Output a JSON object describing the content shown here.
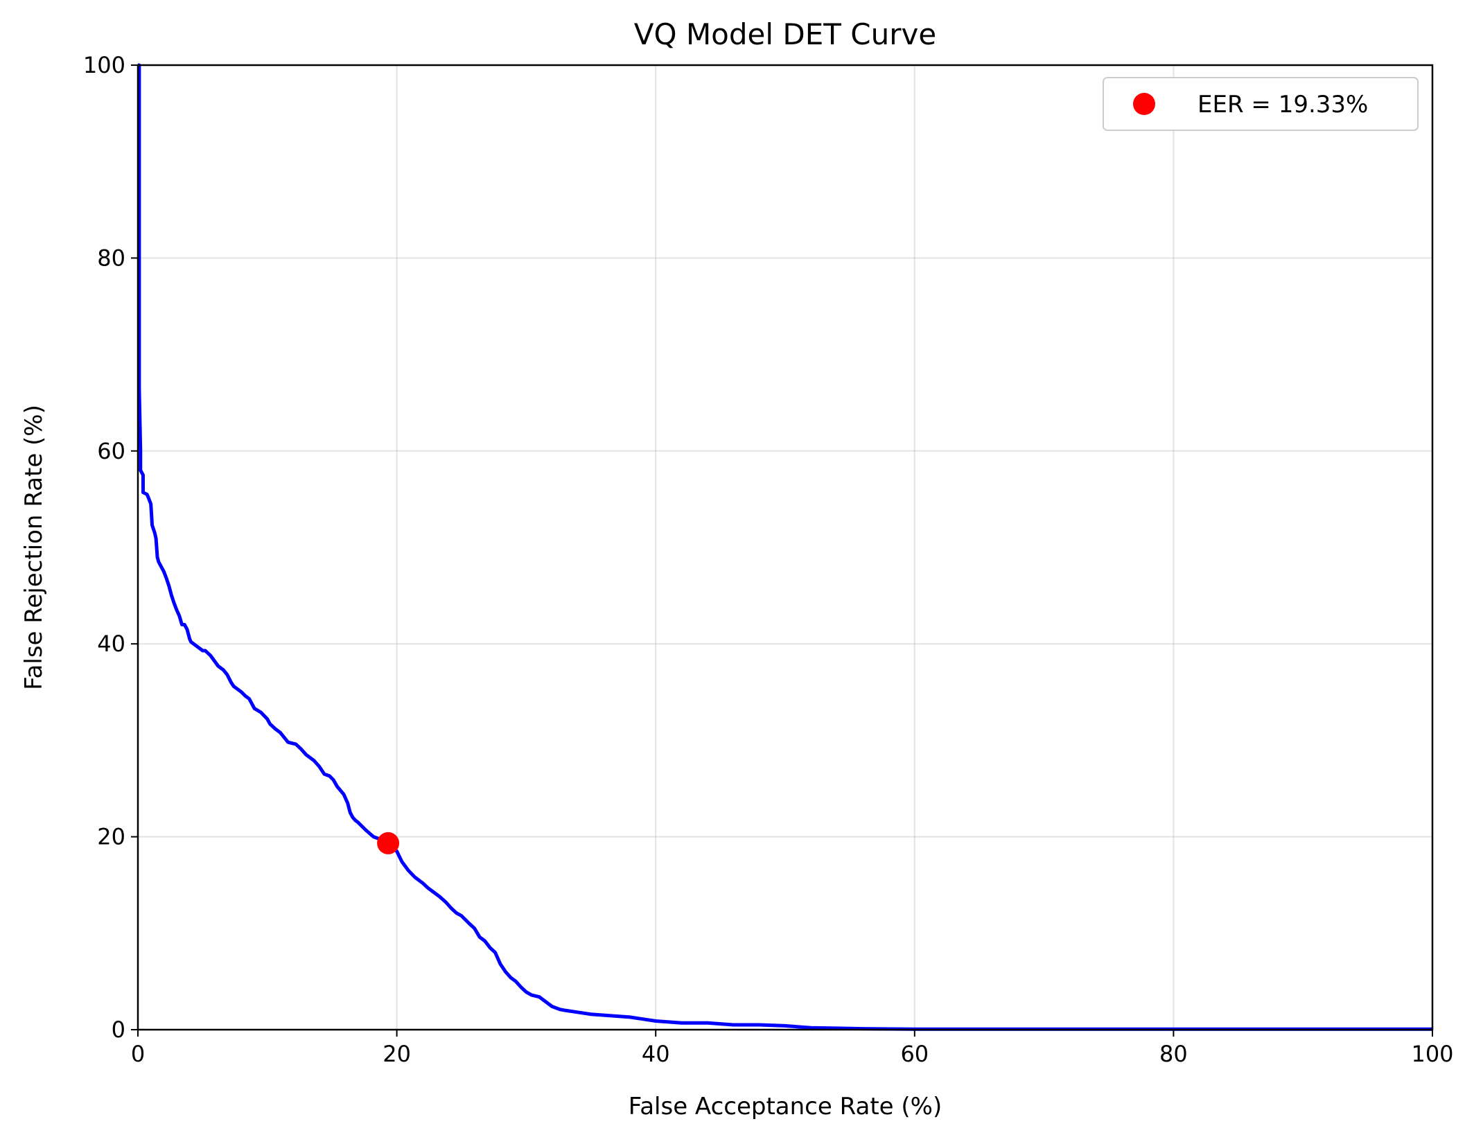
{
  "chart_data": {
    "type": "line",
    "title": "VQ Model DET Curve",
    "xlabel": "False Acceptance Rate (%)",
    "ylabel": "False Rejection Rate (%)",
    "xlim": [
      0,
      100
    ],
    "ylim": [
      0,
      100
    ],
    "xticks": [
      "0",
      "20",
      "40",
      "60",
      "80",
      "100"
    ],
    "yticks": [
      "0",
      "20",
      "40",
      "60",
      "80",
      "100"
    ],
    "grid": true,
    "legend_position": "top-right",
    "series": [
      {
        "color": "#0000ff",
        "x": [
          0,
          0.1,
          0.1,
          0.2,
          0.2,
          0.4,
          0.4,
          0.7,
          0.8,
          1.0,
          1.1,
          1.3,
          1.4,
          1.5,
          1.6,
          1.8,
          2.0,
          2.2,
          2.4,
          2.6,
          2.8,
          3.0,
          3.2,
          3.4,
          3.6,
          3.8,
          4.0,
          4.1,
          4.6,
          4.8,
          5.0,
          5.2,
          5.6,
          6.2,
          6.6,
          6.9,
          7.2,
          7.4,
          8.0,
          8.3,
          8.6,
          9.0,
          9.5,
          10.0,
          10.2,
          10.6,
          11.0,
          11.6,
          12.2,
          12.6,
          13.0,
          13.6,
          14.0,
          14.4,
          14.8,
          15.1,
          15.4,
          15.9,
          16.2,
          16.4,
          16.6,
          16.8,
          17.0,
          17.6,
          18.2,
          18.6,
          19.33,
          20.0,
          20.4,
          20.9,
          21.4,
          22.0,
          22.4,
          22.8,
          23.3,
          23.8,
          24.2,
          24.6,
          25.0,
          25.6,
          26.0,
          26.4,
          26.8,
          27.2,
          27.6,
          28.0,
          28.4,
          28.8,
          29.2,
          29.6,
          30.0,
          30.4,
          31.0,
          31.4,
          31.8,
          32.0,
          32.6,
          33.0,
          34.0,
          35.0,
          36.0,
          37.0,
          38.0,
          39.0,
          40.0,
          41.0,
          42.0,
          43.0,
          44.0,
          45.0,
          46.0,
          48.0,
          50.0,
          51.0,
          52.0,
          54.0,
          56.0,
          60.0,
          70.0,
          80.0,
          90.0,
          100.0
        ],
        "y": [
          100,
          100,
          66.5,
          60,
          58,
          57.5,
          55.7,
          55.5,
          55.2,
          54.5,
          52.3,
          51.5,
          50.9,
          49.0,
          48.5,
          48.0,
          47.5,
          46.8,
          46.0,
          45.0,
          44.2,
          43.5,
          42.9,
          42.0,
          42.0,
          41.5,
          40.5,
          40.2,
          39.7,
          39.5,
          39.3,
          39.3,
          38.8,
          37.7,
          37.3,
          36.8,
          36.0,
          35.6,
          35.0,
          34.6,
          34.3,
          33.3,
          32.9,
          32.2,
          31.7,
          31.2,
          30.8,
          29.8,
          29.6,
          29.1,
          28.5,
          27.9,
          27.3,
          26.5,
          26.3,
          25.9,
          25.2,
          24.4,
          23.5,
          22.5,
          22.0,
          21.7,
          21.5,
          20.7,
          20.0,
          19.8,
          19.33,
          18.5,
          17.4,
          16.5,
          15.8,
          15.2,
          14.7,
          14.3,
          13.8,
          13.2,
          12.6,
          12.1,
          11.8,
          11.0,
          10.5,
          9.6,
          9.2,
          8.5,
          8.0,
          6.8,
          6.0,
          5.4,
          5.0,
          4.4,
          3.9,
          3.6,
          3.4,
          3.0,
          2.6,
          2.4,
          2.1,
          2.0,
          1.8,
          1.6,
          1.5,
          1.4,
          1.3,
          1.1,
          0.9,
          0.8,
          0.7,
          0.7,
          0.7,
          0.6,
          0.5,
          0.5,
          0.4,
          0.3,
          0.2,
          0.15,
          0.1,
          0.05,
          0.05,
          0.05,
          0.05,
          0.05
        ]
      },
      {
        "name": "EER = 19.33%",
        "color": "#ff0000",
        "marker": "circle",
        "x": [
          19.33
        ],
        "y": [
          19.33
        ]
      }
    ]
  }
}
